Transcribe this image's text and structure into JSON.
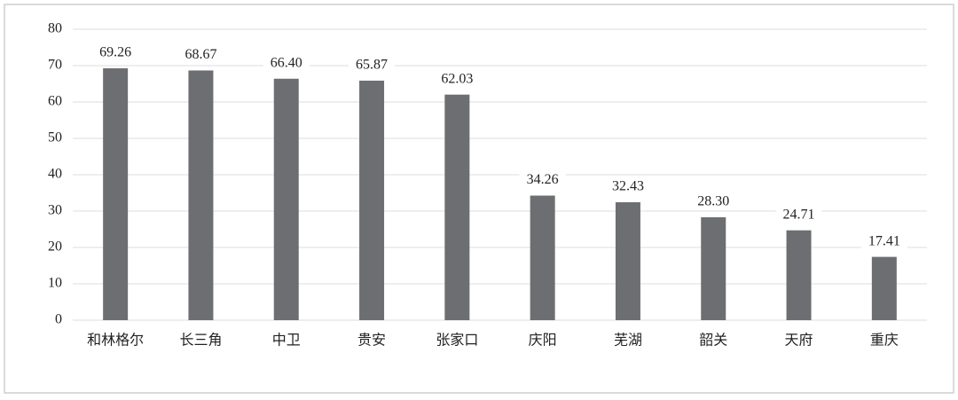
{
  "chart_data": {
    "type": "bar",
    "categories": [
      "和林格尔",
      "长三角",
      "中卫",
      "贵安",
      "张家口",
      "庆阳",
      "芜湖",
      "韶关",
      "天府",
      "重庆"
    ],
    "values": [
      69.26,
      68.67,
      66.4,
      65.87,
      62.03,
      34.26,
      32.43,
      28.3,
      24.71,
      17.41
    ],
    "value_labels": [
      "69.26",
      "68.67",
      "66.40",
      "65.87",
      "62.03",
      "34.26",
      "32.43",
      "28.30",
      "24.71",
      "17.41"
    ],
    "color": "#6d6e71",
    "ylim": [
      0,
      80
    ],
    "yticks": [
      0,
      10,
      20,
      30,
      40,
      50,
      60,
      70,
      80
    ],
    "grid": true
  }
}
